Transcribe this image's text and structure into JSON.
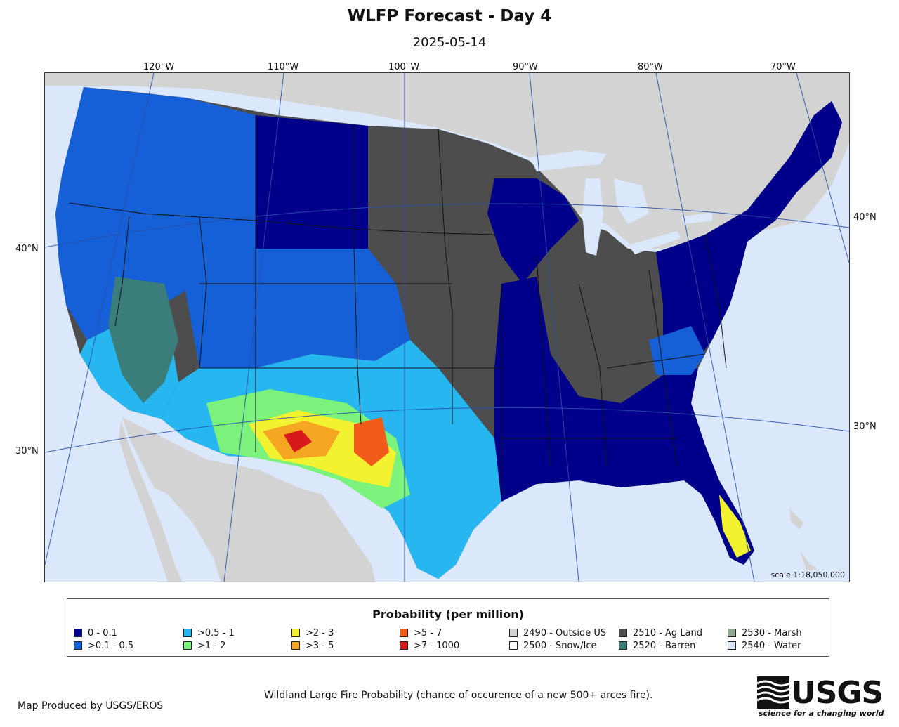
{
  "header": {
    "title": "WLFP Forecast - Day 4",
    "date": "2025-05-14"
  },
  "graticule": {
    "longitudes": [
      "120°W",
      "110°W",
      "100°W",
      "90°W",
      "80°W",
      "70°W"
    ],
    "latitudes_left": [
      "40°N",
      "30°N"
    ],
    "latitudes_right": [
      "40°N",
      "30°N"
    ]
  },
  "map": {
    "scale": "scale 1:18,050,000"
  },
  "legend": {
    "title": "Probability (per million)",
    "items": [
      {
        "label": "0 - 0.1",
        "color": "#00008b"
      },
      {
        "label": ">0.1 - 0.5",
        "color": "#1560d6"
      },
      {
        "label": ">0.5 - 1",
        "color": "#27b7f0"
      },
      {
        "label": ">1 - 2",
        "color": "#7bf27b"
      },
      {
        "label": ">2 - 3",
        "color": "#f2f230"
      },
      {
        "label": ">3 - 5",
        "color": "#f5a623"
      },
      {
        "label": ">5 - 7",
        "color": "#f25c1a"
      },
      {
        "label": ">7 - 1000",
        "color": "#d7191c"
      },
      {
        "label": "2490 - Outside US",
        "color": "#d3d3d3"
      },
      {
        "label": "2500 - Snow/Ice",
        "color": "#ffffff"
      },
      {
        "label": "2510 - Ag Land",
        "color": "#4d4d4d"
      },
      {
        "label": "2520 - Barren",
        "color": "#3a7d7a"
      },
      {
        "label": "2530 - Marsh",
        "color": "#8fa88f"
      },
      {
        "label": "2540 - Water",
        "color": "#dbe8fb"
      }
    ]
  },
  "footer": {
    "produced_by": "Map Produced by USGS/EROS",
    "caption": "Wildland Large Fire Probability (chance of occurence of a new 500+ arces fire).",
    "logo_text": "USGS",
    "logo_tagline": "science for a changing world"
  }
}
